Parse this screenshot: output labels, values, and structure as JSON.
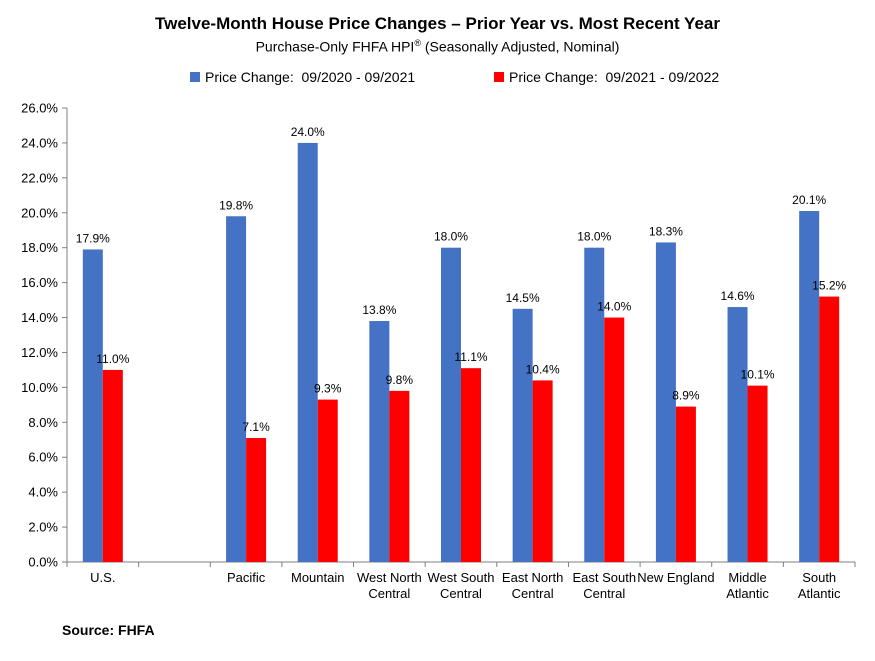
{
  "chart_data": {
    "type": "bar",
    "title": "Twelve-Month House Price Changes – Prior Year vs. Most Recent Year",
    "subtitle": "Purchase-Only FHFA HPI",
    "subtitle_superscript": "®",
    "subtitle_suffix": " (Seasonally Adjusted, Nominal)",
    "categories": [
      [
        "U.S."
      ],
      [
        ""
      ],
      [
        "Pacific"
      ],
      [
        "Mountain"
      ],
      [
        "West North",
        "Central"
      ],
      [
        "West South",
        "Central"
      ],
      [
        "East North",
        "Central"
      ],
      [
        "East South",
        "Central"
      ],
      [
        "New England"
      ],
      [
        "Middle",
        "Atlantic"
      ],
      [
        "South",
        "Atlantic"
      ]
    ],
    "series": [
      {
        "name": "Price Change:  09/2020 - 09/2021",
        "color": "#4472C4",
        "values": [
          17.9,
          null,
          19.8,
          24.0,
          13.8,
          18.0,
          14.5,
          18.0,
          18.3,
          14.6,
          20.1
        ]
      },
      {
        "name": "Price Change:  09/2021 - 09/2022",
        "color": "#FF0000",
        "values": [
          11.0,
          null,
          7.1,
          9.3,
          9.8,
          11.1,
          10.4,
          14.0,
          8.9,
          10.1,
          15.2
        ]
      }
    ],
    "data_labels": [
      [
        "17.9%",
        "",
        "19.8%",
        "24.0%",
        "13.8%",
        "18.0%",
        "14.5%",
        "18.0%",
        "18.3%",
        "14.6%",
        "20.1%"
      ],
      [
        "11.0%",
        "",
        "7.1%",
        "9.3%",
        "9.8%",
        "11.1%",
        "10.4%",
        "14.0%",
        "8.9%",
        "10.1%",
        "15.2%"
      ]
    ],
    "ylim": [
      0,
      26
    ],
    "ytick_step": 2,
    "ytick_labels": [
      "0.0%",
      "2.0%",
      "4.0%",
      "6.0%",
      "8.0%",
      "10.0%",
      "12.0%",
      "14.0%",
      "16.0%",
      "18.0%",
      "20.0%",
      "22.0%",
      "24.0%",
      "26.0%"
    ],
    "grid": false,
    "legend_position": "top"
  },
  "footer": {
    "source": "Source: FHFA"
  }
}
